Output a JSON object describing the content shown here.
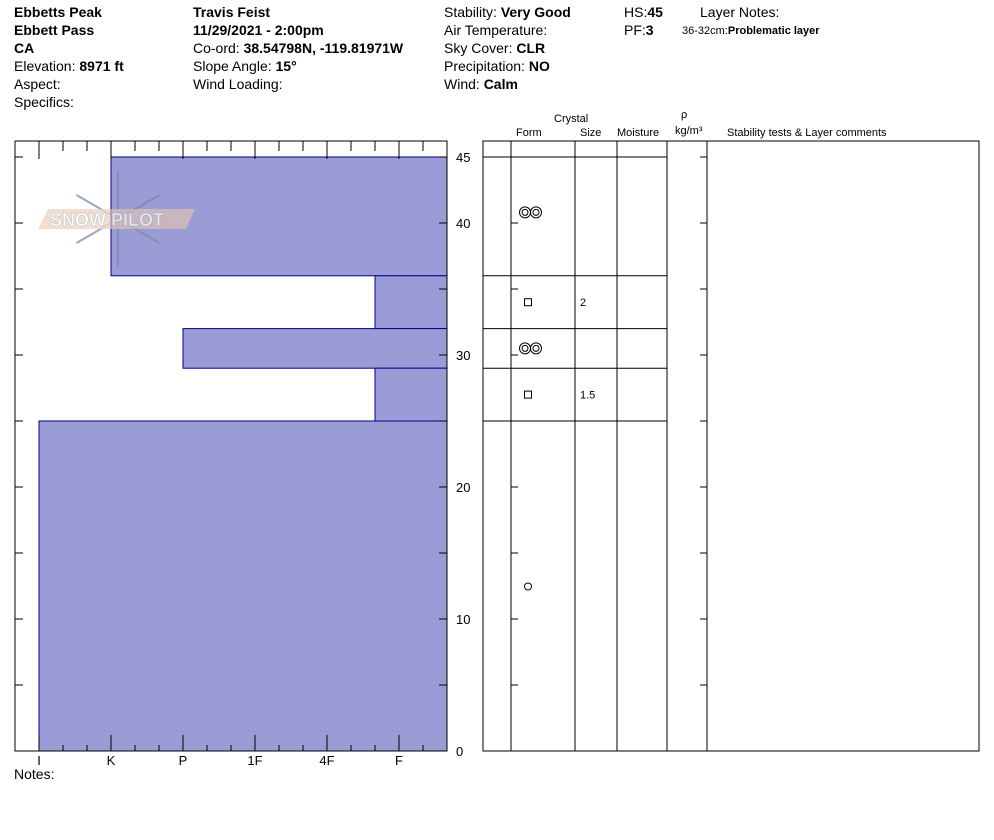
{
  "header": {
    "location": "Ebbetts Peak",
    "area": "Ebbett Pass",
    "state": "CA",
    "elevation_label": "Elevation: ",
    "elevation": "8971 ft",
    "aspect_label": "Aspect:",
    "specifics_label": "Specifics:",
    "observer": "Travis Feist",
    "datetime": "11/29/2021 - 2:00pm",
    "coord_label": "Co-ord: ",
    "coord": "38.54798N, -119.81971W",
    "slope_label": "Slope Angle: ",
    "slope": "15°",
    "wind_loading_label": "Wind Loading:",
    "stability_label": "Stability: ",
    "stability": "Very Good",
    "air_temp_label": "Air Temperature:",
    "sky_label": "Sky Cover: ",
    "sky": "CLR",
    "precip_label": "Precipitation: ",
    "precip": "NO",
    "wind_label": "Wind:  ",
    "wind": "Calm",
    "hs_label": "HS:",
    "hs": "45",
    "pf_label": "PF:",
    "pf": "3",
    "layer_notes_label": "Layer Notes:",
    "layer_note_range": "36-32cm:",
    "layer_note_text": "Problematic layer",
    "notes_label": "Notes:"
  },
  "columns": {
    "crystal": "Crystal",
    "form": "Form",
    "size": "Size",
    "moisture": "Moisture",
    "rho": "ρ",
    "density_unit": "kg/m³",
    "comments": "Stability tests & Layer comments"
  },
  "logo": {
    "text": "SNOW PILOT"
  },
  "chart_data": {
    "type": "bar",
    "x_tick_labels": [
      "I",
      "K",
      "P",
      "1F",
      "4F",
      "F"
    ],
    "y_ticks": [
      0,
      10,
      20,
      30,
      40,
      45
    ],
    "ylim": [
      0,
      45
    ],
    "ylabel": "",
    "fill_color": "#9b9bd6",
    "edge_color": "#00008b",
    "layers": [
      {
        "top": 45,
        "bottom": 36,
        "hardness": "K",
        "form": "double-ring",
        "size": ""
      },
      {
        "top": 36,
        "bottom": 32,
        "hardness": "F+",
        "form": "square",
        "size": "2"
      },
      {
        "top": 32,
        "bottom": 29,
        "hardness": "P",
        "form": "double-ring",
        "size": ""
      },
      {
        "top": 29,
        "bottom": 25,
        "hardness": "F+",
        "form": "square",
        "size": "1.5"
      },
      {
        "top": 25,
        "bottom": 0,
        "hardness": "I",
        "form": "circle",
        "size": ""
      }
    ]
  }
}
